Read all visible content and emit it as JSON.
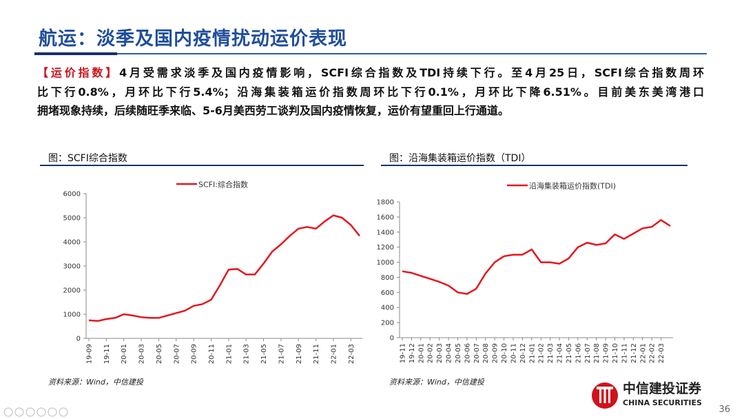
{
  "title": "航运：淡季及国内疫情扰动运价表现",
  "paragraph": {
    "tag": "【运价指数】",
    "lines": [
      "4月受需求淡季及国内疫情影响，SCFI综合指数及TDI持续下行。至4月25日，SCFI综合指数周环",
      "比下行0.8%，月环比下行5.4%；沿海集装箱运价指数周环比下行0.1%，月环比下降6.51%。目前美东美湾港口",
      "拥堵现象持续，后续随旺季来临、5-6月美西劳工谈判及国内疫情恢复，运价有望重回上行通道。"
    ]
  },
  "chart_data": [
    {
      "type": "line",
      "title": "图：SCFI综合指数",
      "source": "资料来源：Wind，中信建投",
      "categories": [
        "19-09",
        null,
        "19-11",
        null,
        "20-01",
        null,
        "20-03",
        null,
        "20-05",
        null,
        "20-07",
        null,
        "20-09",
        null,
        "20-11",
        null,
        "21-01",
        null,
        "21-03",
        null,
        "21-05",
        null,
        "21-07",
        null,
        "21-09",
        null,
        "21-11",
        null,
        "22-01",
        null,
        "22-03",
        null
      ],
      "series": [
        {
          "name": "SCFI:综合指数",
          "color": "#e8141c",
          "values": [
            750,
            720,
            800,
            850,
            1000,
            950,
            880,
            850,
            850,
            950,
            1050,
            1150,
            1350,
            1420,
            1600,
            2200,
            2850,
            2880,
            2650,
            2650,
            3100,
            3600,
            3900,
            4250,
            4550,
            4620,
            4550,
            4850,
            5100,
            5000,
            4700,
            4250
          ]
        }
      ],
      "ylim": [
        0,
        6000
      ],
      "yticks": [
        0,
        1000,
        2000,
        3000,
        4000,
        5000,
        6000
      ]
    },
    {
      "type": "line",
      "title": "图：沿海集装箱运价指数（TDI）",
      "source": "资料来源：Wind，中信建投",
      "categories": [
        "19-11",
        "19-12",
        "20-01",
        "20-02",
        "20-03",
        "20-04",
        "20-05",
        "20-06",
        "20-07",
        "20-08",
        "20-09",
        "20-10",
        "20-11",
        "20-12",
        "21-01",
        "21-02",
        "21-03",
        "21-04",
        "21-05",
        "21-06",
        "21-07",
        "21-08",
        "21-09",
        "21-10",
        "21-11",
        "21-12",
        "22-01",
        "22-02",
        "22-03",
        null
      ],
      "series": [
        {
          "name": "沿海集装箱运价指数(TDI)",
          "color": "#e8141c",
          "values": [
            880,
            860,
            820,
            780,
            740,
            690,
            600,
            580,
            650,
            850,
            1000,
            1080,
            1100,
            1100,
            1170,
            1000,
            1000,
            980,
            1050,
            1200,
            1260,
            1230,
            1250,
            1370,
            1310,
            1380,
            1450,
            1470,
            1560,
            1480
          ]
        }
      ],
      "ylim": [
        0,
        1800
      ],
      "yticks": [
        0,
        200,
        400,
        600,
        800,
        1000,
        1200,
        1400,
        1600,
        1800
      ]
    }
  ],
  "logo": {
    "name": "中信建投证券",
    "english": "CHINA SECURITIES"
  },
  "page_number": "36"
}
